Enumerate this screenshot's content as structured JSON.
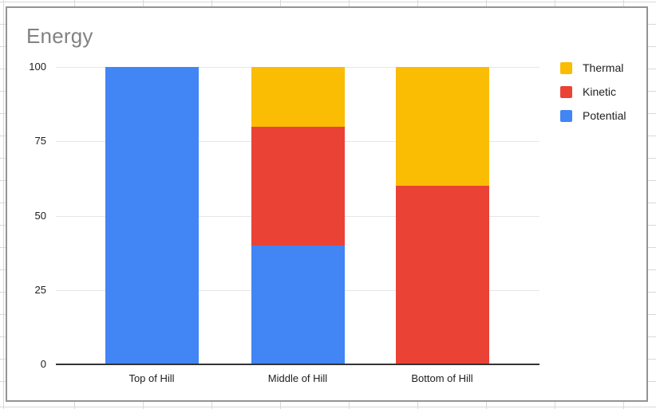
{
  "chart_data": {
    "type": "bar",
    "stacked": true,
    "title": "Energy",
    "categories": [
      "Top of Hill",
      "Middle of Hill",
      "Bottom of Hill"
    ],
    "series": [
      {
        "name": "Potential",
        "color": "#4285F4",
        "values": [
          100,
          40,
          0
        ]
      },
      {
        "name": "Kinetic",
        "color": "#EA4335",
        "values": [
          0,
          40,
          60
        ]
      },
      {
        "name": "Thermal",
        "color": "#FBBC04",
        "values": [
          0,
          20,
          40
        ]
      }
    ],
    "y_ticks": [
      0,
      25,
      50,
      75,
      100
    ],
    "ylim": [
      0,
      100
    ],
    "xlabel": "",
    "ylabel": "",
    "grid": true,
    "legend_position": "right",
    "legend_order": [
      "Thermal",
      "Kinetic",
      "Potential"
    ]
  },
  "colors": {
    "chart_border": "#949494",
    "sheet_gridline": "#d9d9d9",
    "plot_gridline": "#e6e6e6",
    "axis_line": "#333333",
    "title_text": "#828282",
    "label_text": "#202020"
  }
}
